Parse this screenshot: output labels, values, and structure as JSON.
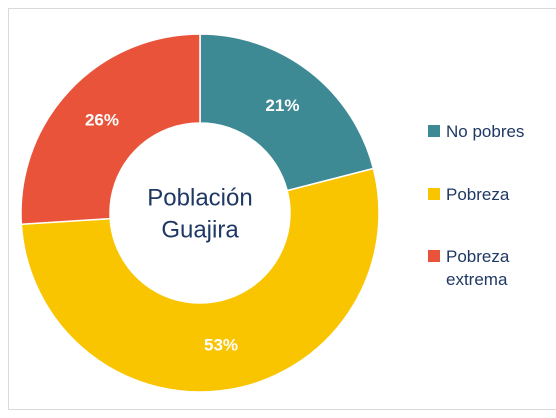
{
  "chart_data": {
    "type": "donut",
    "center_text": [
      "Población",
      "Guajira"
    ],
    "categories": [
      "No pobres",
      "Pobreza",
      "Pobreza extrema"
    ],
    "values": [
      21,
      53,
      26
    ],
    "value_labels": [
      "21%",
      "53%",
      "26%"
    ],
    "colors": [
      "#3e8a94",
      "#f9c400",
      "#e9533a"
    ],
    "legend": "right"
  }
}
